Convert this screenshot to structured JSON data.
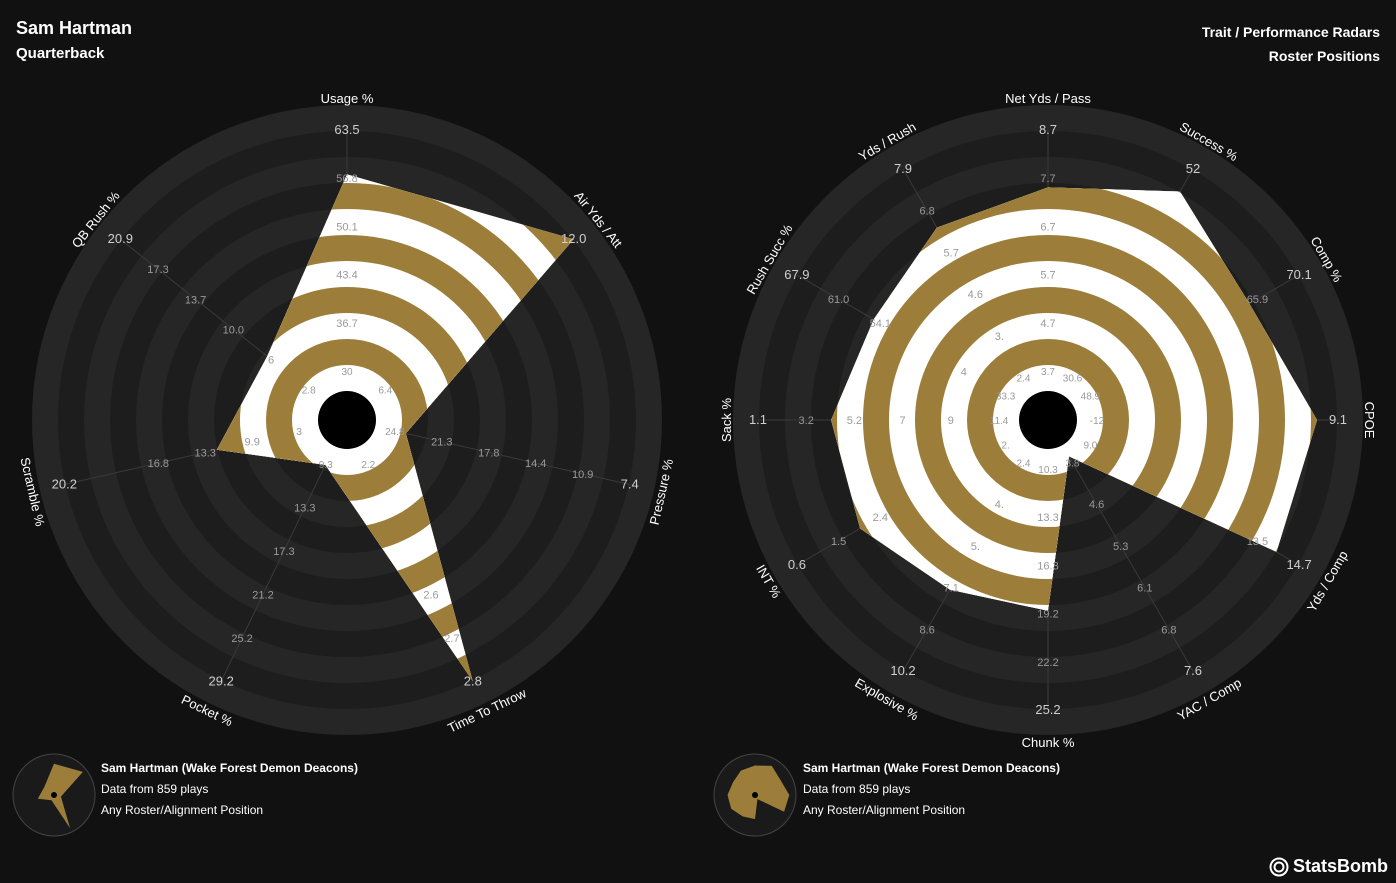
{
  "header": {
    "player_name": "Sam Hartman",
    "position": "Quarterback",
    "title": "Trait / Performance Radars",
    "subtitle": "Roster Positions"
  },
  "colors": {
    "background": "#111111",
    "ring_dark": "#262626",
    "ring_light": "#1d1d1d",
    "gold": "#9c7e3a",
    "white": "#ffffff"
  },
  "chart_data": [
    {
      "type": "radar",
      "title": "Trait Radar",
      "axes": [
        {
          "label": "Usage %",
          "ticks": [
            "30",
            "36.7",
            "43.4",
            "50.1",
            "56.8",
            "63.5"
          ],
          "value_fraction": 0.83
        },
        {
          "label": "Air Yds / Att",
          "ticks": [
            "6.4",
            "",
            "",
            "",
            "",
            "12.0"
          ],
          "value_fraction": 1.0
        },
        {
          "label": "Pressure %",
          "ticks": [
            "24.8",
            "21.3",
            "17.8",
            "14.4",
            "10.9",
            "7.4"
          ],
          "value_fraction": 0.12
        },
        {
          "label": "Time To Throw",
          "ticks": [
            "2.2",
            "",
            "",
            "2.6",
            "2.7",
            "2.8"
          ],
          "value_fraction": 1.0
        },
        {
          "label": "Pocket %",
          "ticks": [
            "9.3",
            "13.3",
            "17.3",
            "21.2",
            "25.2",
            "29.2"
          ],
          "value_fraction": 0.08
        },
        {
          "label": "Scramble %",
          "ticks": [
            "3",
            "9.9",
            "13.3",
            "16.8",
            "",
            "20.2"
          ],
          "value_fraction": 0.4
        },
        {
          "label": "QB Rush %",
          "ticks": [
            "2.8",
            "6",
            "10.0",
            "13.7",
            "17.3",
            "20.9"
          ],
          "value_fraction": 0.28
        }
      ]
    },
    {
      "type": "radar",
      "title": "Performance Radar",
      "axes": [
        {
          "label": "Net Yds / Pass",
          "ticks": [
            "3.7",
            "4.7",
            "5.7",
            "6.7",
            "7.7",
            "8.7"
          ],
          "value_fraction": 0.78
        },
        {
          "label": "Success %",
          "ticks": [
            "30.6",
            "",
            "",
            "",
            "",
            "52"
          ],
          "value_fraction": 0.9
        },
        {
          "label": "Comp %",
          "ticks": [
            "48.9",
            "",
            "",
            "",
            "65.9",
            "70.1"
          ],
          "value_fraction": 0.78
        },
        {
          "label": "CPOE",
          "ticks": [
            "-12",
            "",
            "",
            "",
            "",
            "9.1"
          ],
          "value_fraction": 0.92
        },
        {
          "label": "Yds / Comp",
          "ticks": [
            "9.0",
            "",
            "",
            "",
            "13.5",
            "14.7"
          ],
          "value_fraction": 0.9
        },
        {
          "label": "YAC / Comp",
          "ticks": [
            "3.8",
            "4.6",
            "5.3",
            "6.1",
            "6.8",
            "7.6"
          ],
          "value_fraction": 0.05
        },
        {
          "label": "Chunk %",
          "ticks": [
            "10.3",
            "13.3",
            "16.3",
            "19.2",
            "22.2",
            "25.2"
          ],
          "value_fraction": 0.62
        },
        {
          "label": "Explosive %",
          "ticks": [
            "2.4",
            "4.",
            "5.",
            "7.1",
            "8.6",
            "10.2"
          ],
          "value_fraction": 0.64
        },
        {
          "label": "INT %",
          "ticks": [
            "2.",
            "",
            "",
            "2.4",
            "1.5",
            "0.6"
          ],
          "value_fraction": 0.72
        },
        {
          "label": "Sack %",
          "ticks": [
            "11.4",
            "9",
            "7",
            "5.2",
            "3.2",
            "1.1"
          ],
          "value_fraction": 0.72
        },
        {
          "label": "Rush Succ %",
          "ticks": [
            "33.3",
            "4",
            "",
            "54.1",
            "61.0",
            "67.9"
          ],
          "value_fraction": 0.66
        },
        {
          "label": "Yds / Rush",
          "ticks": [
            "2.4",
            "3.",
            "4.6",
            "5.7",
            "6.8",
            "7.9"
          ],
          "value_fraction": 0.74
        }
      ]
    }
  ],
  "legends": [
    {
      "line1": "Sam Hartman (Wake Forest Demon Deacons)",
      "line2": "Data from 859 plays",
      "line3": "Any Roster/Alignment Position"
    },
    {
      "line1": "Sam Hartman (Wake Forest Demon Deacons)",
      "line2": "Data from 859 plays",
      "line3": "Any Roster/Alignment Position"
    }
  ],
  "brand": "StatsBomb"
}
